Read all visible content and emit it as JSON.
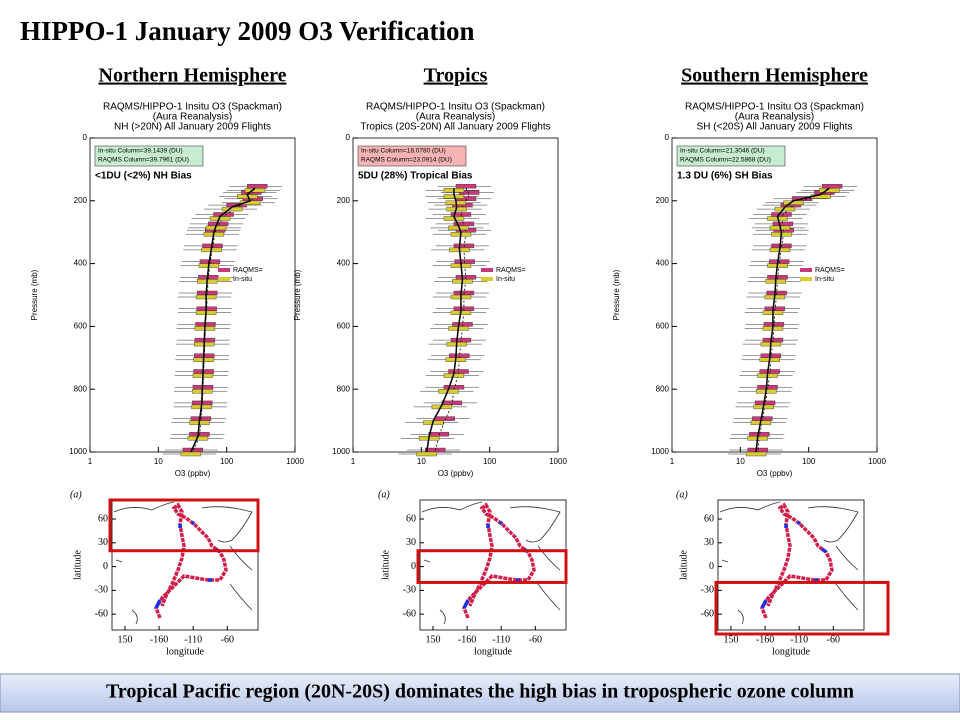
{
  "title": "HIPPO-1 January 2009 O3 Verification",
  "footer": "Tropical Pacific region (20N-20S) dominates the high bias in tropospheric ozone column",
  "chart_data": [
    {
      "type": "line",
      "heading": "Northern Hemisphere",
      "title": [
        "RAQMS/HIPPO-1 Insitu O3 (Spackman)",
        "(Aura Reanalysis)",
        "NH (>20N) All January 2009 Flights"
      ],
      "xlabel": "O3 (ppbv)",
      "ylabel": "Pressure (mb)",
      "xscale": "log",
      "xlim": [
        1,
        1000
      ],
      "xticks": [
        1,
        10,
        100,
        1000
      ],
      "ylim": [
        1000,
        0
      ],
      "yticks": [
        0,
        200,
        400,
        600,
        800,
        1000
      ],
      "y": [
        160,
        180,
        200,
        220,
        250,
        280,
        300,
        350,
        400,
        450,
        500,
        550,
        600,
        650,
        700,
        750,
        800,
        850,
        900,
        950,
        1000
      ],
      "series": [
        {
          "name": "RAQMS=",
          "color": "#c8387a",
          "values": [
            280,
            230,
            240,
            140,
            90,
            75,
            68,
            62,
            57,
            54,
            52,
            51,
            49,
            48,
            47,
            46,
            45,
            44,
            42,
            40,
            32
          ]
        },
        {
          "name": "In-situ",
          "color": "#d8cc30",
          "values": [
            260,
            200,
            220,
            120,
            80,
            70,
            65,
            60,
            55,
            52,
            50,
            50,
            48,
            47,
            46,
            45,
            44,
            43,
            40,
            38,
            30
          ]
        }
      ],
      "annotations": {
        "insitu_column": "In-situ Column=39.1439 (DU)",
        "raqms_column": "RAQMS Column=39.7961 (DU)",
        "bias": "<1DU (<2%)  NH Bias"
      },
      "box_color": "#c8ecd0"
    },
    {
      "type": "line",
      "heading": "Tropics",
      "title": [
        "RAQMS/HIPPO-1 Insitu O3 (Spackman)",
        "(Aura Reanalysis)",
        "Tropics (20S-20N) All January 2009 Flights"
      ],
      "xlabel": "O3 (ppbv)",
      "ylabel": "Pressure (mb)",
      "xscale": "log",
      "xlim": [
        1,
        1000
      ],
      "xticks": [
        1,
        10,
        100,
        1000
      ],
      "ylim": [
        1000,
        0
      ],
      "yticks": [
        0,
        200,
        400,
        600,
        800,
        1000
      ],
      "y": [
        160,
        180,
        200,
        220,
        250,
        280,
        300,
        350,
        400,
        450,
        500,
        550,
        600,
        650,
        700,
        750,
        800,
        850,
        900,
        950,
        1000
      ],
      "series": [
        {
          "name": "RAQMS=",
          "color": "#c8387a",
          "values": [
            45,
            50,
            45,
            40,
            38,
            42,
            45,
            42,
            43,
            45,
            42,
            42,
            40,
            38,
            36,
            35,
            30,
            28,
            22,
            18,
            16
          ]
        },
        {
          "name": "In-situ",
          "color": "#d8cc30",
          "values": [
            30,
            30,
            32,
            33,
            30,
            35,
            38,
            36,
            38,
            40,
            38,
            38,
            35,
            33,
            32,
            30,
            25,
            20,
            15,
            13,
            12
          ]
        }
      ],
      "annotations": {
        "insitu_column": "In-situ Column=18.0780 (DU)",
        "raqms_column": "RAQMS Column=23.0914 (DU)",
        "bias": "5DU (28%) Tropical  Bias"
      },
      "box_color": "#f4b4b4"
    },
    {
      "type": "line",
      "heading": "Southern Hemisphere",
      "title": [
        "RAQMS/HIPPO-1 Insitu O3 (Spackman)",
        "(Aura Reanalysis)",
        "SH (<20S) All January 2009 Flights"
      ],
      "xlabel": "O3 (ppbv)",
      "ylabel": "Pressure (mb)",
      "xscale": "log",
      "xlim": [
        1,
        1000
      ],
      "xticks": [
        1,
        10,
        100,
        1000
      ],
      "ylim": [
        1000,
        0
      ],
      "yticks": [
        0,
        200,
        400,
        600,
        800,
        1000
      ],
      "y": [
        160,
        180,
        200,
        220,
        250,
        280,
        300,
        350,
        400,
        450,
        500,
        550,
        600,
        650,
        700,
        750,
        800,
        850,
        900,
        950,
        1000
      ],
      "series": [
        {
          "name": "RAQMS=",
          "color": "#c8387a",
          "values": [
            220,
            170,
            80,
            55,
            40,
            42,
            43,
            40,
            37,
            35,
            34,
            32,
            31,
            30,
            28,
            27,
            25,
            23,
            21,
            19,
            18
          ]
        },
        {
          "name": "In-situ",
          "color": "#d8cc30",
          "values": [
            200,
            150,
            60,
            45,
            35,
            38,
            40,
            38,
            35,
            33,
            32,
            30,
            30,
            28,
            27,
            25,
            24,
            22,
            20,
            18,
            17
          ]
        }
      ],
      "annotations": {
        "insitu_column": "In-situ Column=21.3046 (DU)",
        "raqms_column": "RAQMS Column=22.5868 (DU)",
        "bias": "1.3 DU (6%) SH Bias"
      },
      "box_color": "#c8ecd0"
    }
  ],
  "maps": [
    {
      "label": "(a)",
      "xlabel": "longitude",
      "ylabel": "latitude",
      "xlim": [
        131,
        345
      ],
      "ylim": [
        -80,
        84
      ],
      "xticks": [
        150,
        {
          "value": 200,
          "label": "-160"
        },
        {
          "value": 250,
          "label": "-110"
        },
        {
          "value": 300,
          "label": "-60"
        }
      ],
      "yticks": [
        60,
        30,
        0,
        -30,
        -60
      ],
      "highlight_lat": [
        20,
        84
      ],
      "highlight_color": "#d01010"
    },
    {
      "label": "(a)",
      "xlabel": "longitude",
      "ylabel": "latitude",
      "xlim": [
        131,
        345
      ],
      "ylim": [
        -80,
        84
      ],
      "xticks": [
        150,
        {
          "value": 200,
          "label": "-160"
        },
        {
          "value": 250,
          "label": "-110"
        },
        {
          "value": 300,
          "label": "-60"
        }
      ],
      "yticks": [
        60,
        30,
        0,
        -30,
        -60
      ],
      "highlight_lat": [
        -20,
        20
      ],
      "highlight_color": "#d01010"
    },
    {
      "label": "(a)",
      "xlabel": "longitude",
      "ylabel": "latitude",
      "xlim": [
        131,
        345
      ],
      "ylim": [
        -80,
        84
      ],
      "xticks": [
        150,
        {
          "value": 200,
          "label": "-160"
        },
        {
          "value": 250,
          "label": "-110"
        },
        {
          "value": 300,
          "label": "-60"
        }
      ],
      "yticks": [
        60,
        30,
        0,
        -30,
        -60
      ],
      "highlight_lat": [
        -80,
        -20
      ],
      "highlight_color": "#d01010"
    }
  ]
}
